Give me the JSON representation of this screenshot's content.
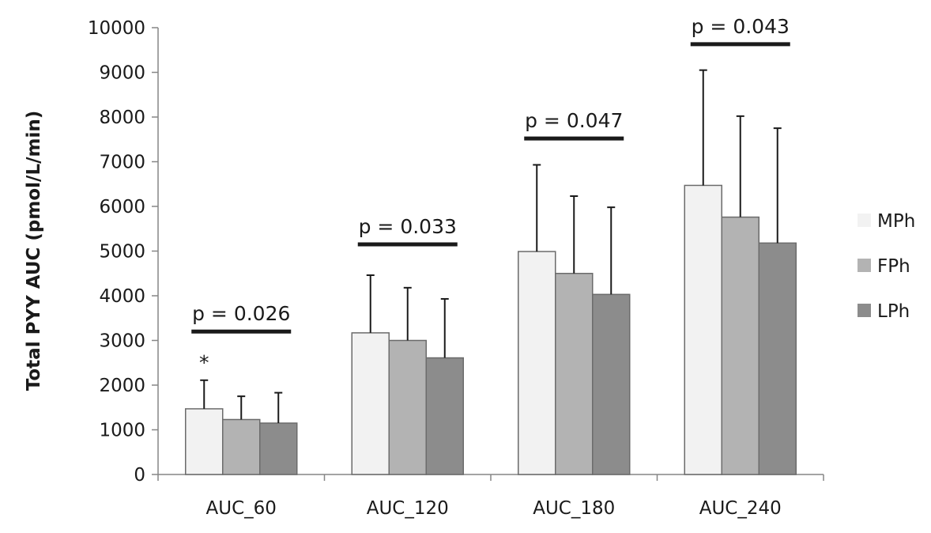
{
  "chart_data": {
    "type": "bar",
    "ylabel": "Total PYY AUC (pmol/L/min)",
    "xlabel": "",
    "ylim": [
      0,
      10000
    ],
    "yticks": [
      0,
      1000,
      2000,
      3000,
      4000,
      5000,
      6000,
      7000,
      8000,
      9000,
      10000
    ],
    "grid": false,
    "legend_position": "right",
    "categories": [
      "AUC_60",
      "AUC_120",
      "AUC_180",
      "AUC_240"
    ],
    "series": [
      {
        "name": "MPh",
        "color": "#f2f2f2",
        "values": [
          1470,
          3170,
          4990,
          6470
        ],
        "error_upper": [
          2110,
          4460,
          6930,
          9050
        ]
      },
      {
        "name": "FPh",
        "color": "#b3b3b3",
        "values": [
          1230,
          3000,
          4500,
          5760
        ],
        "error_upper": [
          1750,
          4180,
          6230,
          8020
        ]
      },
      {
        "name": "LPh",
        "color": "#8c8c8c",
        "values": [
          1150,
          2610,
          4030,
          5180
        ],
        "error_upper": [
          1830,
          3930,
          5980,
          7750
        ]
      }
    ],
    "annotations": [
      {
        "category": "AUC_60",
        "text": "p = 0.026",
        "bar_value": 3200
      },
      {
        "category": "AUC_120",
        "text": "p = 0.033",
        "bar_value": 5150
      },
      {
        "category": "AUC_180",
        "text": "p = 0.047",
        "bar_value": 7520
      },
      {
        "category": "AUC_240",
        "text": "p = 0.043",
        "bar_value": 9630
      }
    ],
    "markers": [
      {
        "category": "AUC_60",
        "series": "MPh",
        "text": "*"
      }
    ]
  }
}
